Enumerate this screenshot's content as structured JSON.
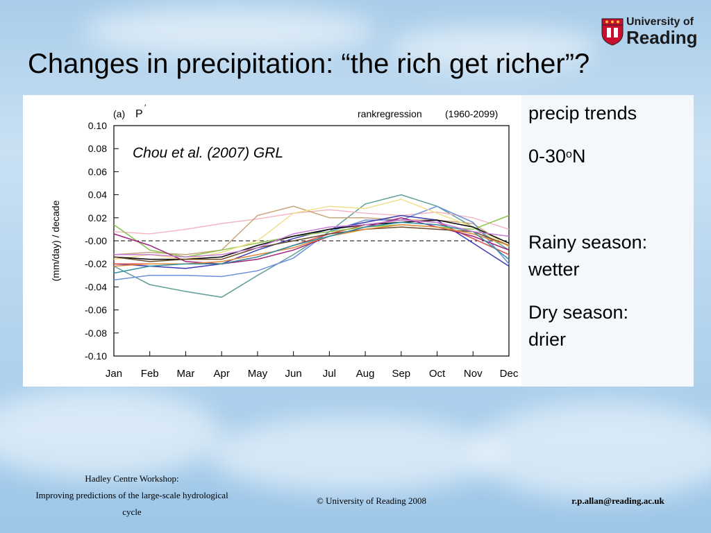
{
  "slide": {
    "title": "Changes in precipitation: “the rich get richer”?",
    "logo": {
      "line1": "University of",
      "line2": "Reading"
    },
    "side_text": {
      "line1": "precip trends",
      "line2_pre": "0-30",
      "line2_sup": "o",
      "line2_post": "N",
      "rainy_a": "Rainy season:",
      "rainy_b": "wetter",
      "dry_a": "Dry season:",
      "dry_b": "drier"
    },
    "footer": {
      "left_1": "Hadley Centre Workshop:",
      "left_2": "Improving predictions of the large-scale hydrological",
      "left_3": "cycle",
      "center": "© University of Reading 2008",
      "right": "r.p.allan@reading.ac.uk"
    }
  },
  "chart_data": {
    "type": "line",
    "panel_label": "(a)",
    "variable": "P",
    "variable_prime": "′",
    "method_label": "rankregression",
    "period_label": "(1960-2099)",
    "annotation": "Chou et al. (2007) GRL",
    "ylabel": "(mm/day) / decade",
    "xlabel": "",
    "ylim": [
      -0.1,
      0.1
    ],
    "yticks": [
      0.1,
      0.08,
      0.06,
      0.04,
      0.02,
      0.0,
      -0.02,
      -0.04,
      -0.06,
      -0.08,
      -0.1
    ],
    "ytick_labels": [
      "0.10",
      "0.08",
      "0.06",
      "0.04",
      "0.02",
      "-0.00",
      "-0.02",
      "-0.04",
      "-0.06",
      "-0.08",
      "-0.10"
    ],
    "categories": [
      "Jan",
      "Feb",
      "Mar",
      "Apr",
      "May",
      "Jun",
      "Jul",
      "Aug",
      "Sep",
      "Oct",
      "Nov",
      "Dec"
    ],
    "zero_line": "dashed",
    "grid": false,
    "series": [
      {
        "color": "#5f9f98",
        "values": [
          -0.022,
          -0.038,
          -0.044,
          -0.049,
          -0.03,
          -0.012,
          0.008,
          0.032,
          0.04,
          0.03,
          0.012,
          -0.008
        ]
      },
      {
        "color": "#f2b8c2",
        "values": [
          0.008,
          0.006,
          0.01,
          0.015,
          0.019,
          0.024,
          0.027,
          0.024,
          0.022,
          0.025,
          0.02,
          0.01
        ]
      },
      {
        "color": "#c8a47a",
        "values": [
          -0.012,
          -0.01,
          -0.012,
          -0.008,
          0.022,
          0.03,
          0.02,
          0.02,
          0.018,
          0.018,
          0.015,
          -0.005
        ]
      },
      {
        "color": "#6b8fd9",
        "values": [
          -0.034,
          -0.03,
          -0.03,
          -0.031,
          -0.026,
          -0.015,
          0.008,
          0.018,
          0.018,
          0.03,
          0.016,
          -0.02
        ]
      },
      {
        "color": "#3b3bb3",
        "values": [
          -0.02,
          -0.022,
          -0.024,
          -0.02,
          -0.008,
          0.002,
          0.01,
          0.016,
          0.022,
          0.018,
          -0.002,
          -0.022
        ]
      },
      {
        "color": "#d94a4a",
        "values": [
          -0.02,
          -0.02,
          -0.02,
          -0.02,
          -0.014,
          -0.004,
          0.006,
          0.014,
          0.018,
          0.016,
          0.002,
          -0.012
        ]
      },
      {
        "color": "#8ac34a",
        "values": [
          0.014,
          -0.008,
          -0.014,
          -0.008,
          -0.002,
          0.004,
          0.008,
          0.012,
          0.014,
          0.012,
          0.01,
          0.022
        ]
      },
      {
        "color": "#f0e08a",
        "values": [
          -0.016,
          -0.012,
          -0.016,
          -0.01,
          0.0,
          0.024,
          0.03,
          0.028,
          0.036,
          0.024,
          0.012,
          -0.004
        ]
      },
      {
        "color": "#000000",
        "values": [
          -0.014,
          -0.016,
          -0.016,
          -0.014,
          -0.004,
          0.004,
          0.01,
          0.014,
          0.016,
          0.018,
          0.012,
          -0.002
        ]
      },
      {
        "color": "#a0207a",
        "values": [
          0.006,
          -0.004,
          -0.018,
          -0.02,
          -0.016,
          -0.008,
          0.004,
          0.012,
          0.02,
          0.012,
          0.004,
          -0.008
        ]
      },
      {
        "color": "#6a4a2a",
        "values": [
          -0.014,
          -0.018,
          -0.016,
          -0.016,
          -0.006,
          0.0,
          0.006,
          0.01,
          0.012,
          0.01,
          0.008,
          -0.004
        ]
      },
      {
        "color": "#e08a3a",
        "values": [
          -0.022,
          -0.02,
          -0.02,
          -0.018,
          -0.012,
          -0.006,
          0.004,
          0.01,
          0.014,
          0.012,
          0.006,
          -0.004
        ]
      },
      {
        "color": "#2f8fa0",
        "values": [
          -0.028,
          -0.022,
          -0.02,
          -0.02,
          -0.014,
          -0.004,
          0.004,
          0.012,
          0.016,
          0.014,
          0.008,
          -0.016
        ]
      },
      {
        "color": "#c77dd6",
        "values": [
          -0.012,
          -0.012,
          -0.014,
          -0.012,
          -0.006,
          0.006,
          0.012,
          0.014,
          0.018,
          0.016,
          0.008,
          0.004
        ]
      }
    ]
  }
}
